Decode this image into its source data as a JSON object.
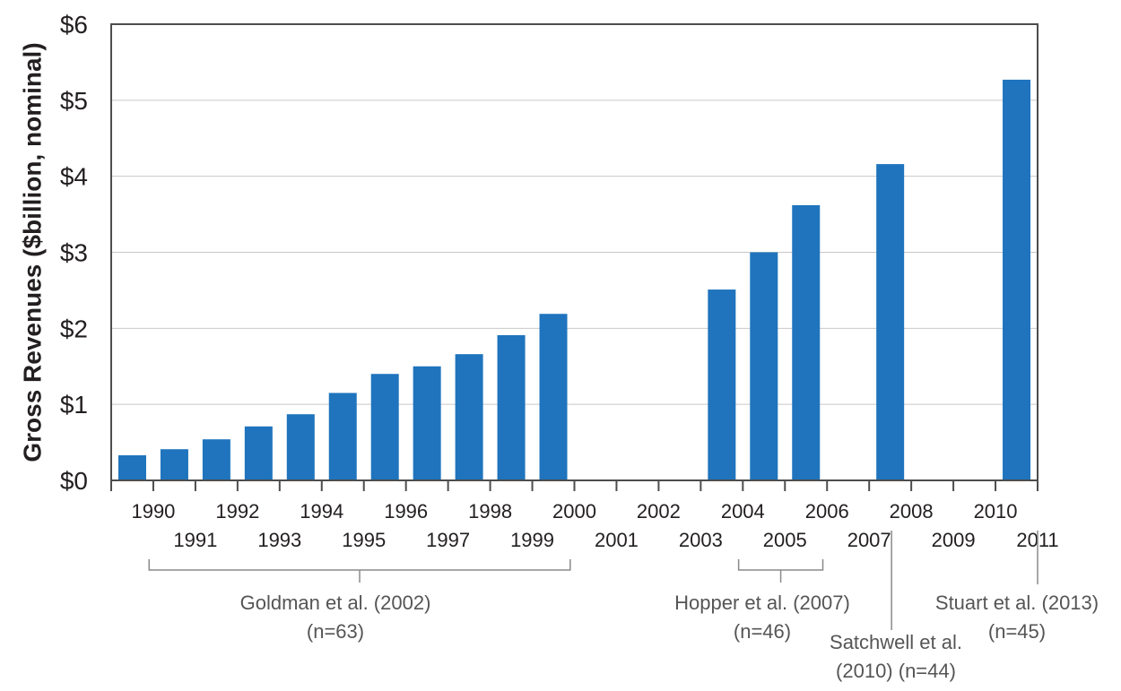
{
  "chart_data": {
    "type": "bar",
    "ylabel": "Gross Revenues ($billion, nominal)",
    "xlabel": "",
    "ylim": [
      0,
      6
    ],
    "yticks": [
      {
        "value": 0,
        "label": "$0"
      },
      {
        "value": 1,
        "label": "$1"
      },
      {
        "value": 2,
        "label": "$2"
      },
      {
        "value": 3,
        "label": "$3"
      },
      {
        "value": 4,
        "label": "$4"
      },
      {
        "value": 5,
        "label": "$5"
      },
      {
        "value": 6,
        "label": "$6"
      }
    ],
    "grid": true,
    "bar_color": "#1f74bd",
    "categories": [
      "1990",
      "1991",
      "1992",
      "1993",
      "1994",
      "1995",
      "1996",
      "1997",
      "1998",
      "1999",
      "2000",
      "2001",
      "2002",
      "2003",
      "2004",
      "2005",
      "2006",
      "2007",
      "2008",
      "2009",
      "2010",
      "2011"
    ],
    "values": [
      0.33,
      0.41,
      0.54,
      0.71,
      0.87,
      1.15,
      1.4,
      1.5,
      1.66,
      1.91,
      2.19,
      null,
      null,
      null,
      2.51,
      3.0,
      3.62,
      null,
      4.16,
      null,
      null,
      5.27
    ],
    "annotations": [
      {
        "lines": [
          "Goldman et al. (2002)",
          "(n=63)"
        ],
        "start": "1990",
        "end": "2000",
        "style": "bracket"
      },
      {
        "lines": [
          "Hopper et al. (2007)",
          "(n=46)"
        ],
        "start": "2004",
        "end": "2006",
        "style": "bracket"
      },
      {
        "lines": [
          "Satchwell et al.",
          "(2010) (n=44)"
        ],
        "start": "2008",
        "end": "2008",
        "style": "line"
      },
      {
        "lines": [
          "Stuart et al. (2013)",
          "(n=45)"
        ],
        "start": "2011",
        "end": "2011",
        "style": "line"
      }
    ]
  }
}
